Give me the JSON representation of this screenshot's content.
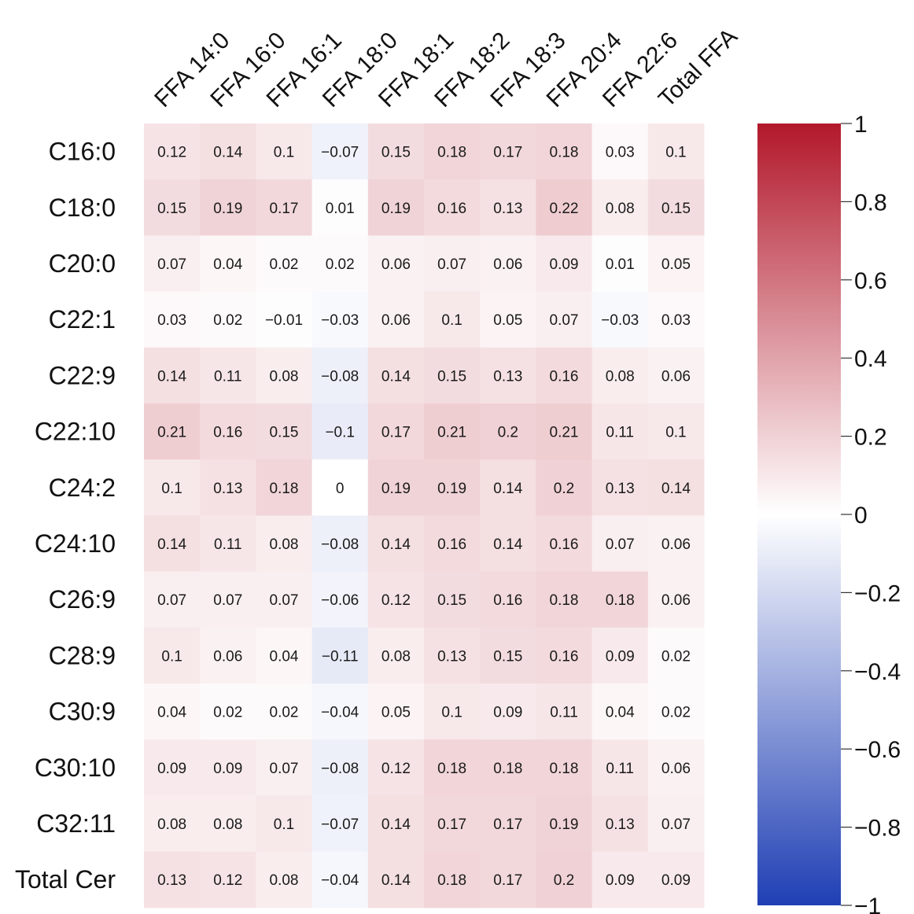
{
  "chart_data": {
    "type": "heatmap",
    "columns": [
      "FFA 14:0",
      "FFA 16:0",
      "FFA 16:1",
      "FFA 18:0",
      "FFA 18:1",
      "FFA 18:2",
      "FFA 18:3",
      "FFA 20:4",
      "FFA 22:6",
      "Total FFA"
    ],
    "rows": [
      "C16:0",
      "C18:0",
      "C20:0",
      "C22:1",
      "C22:9",
      "C22:10",
      "C24:2",
      "C24:10",
      "C26:9",
      "C28:9",
      "C30:9",
      "C30:10",
      "C32:11",
      "Total Cer"
    ],
    "values": [
      [
        0.12,
        0.14,
        0.1,
        -0.07,
        0.15,
        0.18,
        0.17,
        0.18,
        0.03,
        0.1
      ],
      [
        0.15,
        0.19,
        0.17,
        0.01,
        0.19,
        0.16,
        0.13,
        0.22,
        0.08,
        0.15
      ],
      [
        0.07,
        0.04,
        0.02,
        0.02,
        0.06,
        0.07,
        0.06,
        0.09,
        0.01,
        0.05
      ],
      [
        0.03,
        0.02,
        -0.01,
        -0.03,
        0.06,
        0.1,
        0.05,
        0.07,
        -0.03,
        0.03
      ],
      [
        0.14,
        0.11,
        0.08,
        -0.08,
        0.14,
        0.15,
        0.13,
        0.16,
        0.08,
        0.06
      ],
      [
        0.21,
        0.16,
        0.15,
        -0.1,
        0.17,
        0.21,
        0.2,
        0.21,
        0.11,
        0.1
      ],
      [
        0.1,
        0.13,
        0.18,
        0,
        0.19,
        0.19,
        0.14,
        0.2,
        0.13,
        0.14
      ],
      [
        0.14,
        0.11,
        0.08,
        -0.08,
        0.14,
        0.16,
        0.14,
        0.16,
        0.07,
        0.06
      ],
      [
        0.07,
        0.07,
        0.07,
        -0.06,
        0.12,
        0.15,
        0.16,
        0.18,
        0.18,
        0.06
      ],
      [
        0.1,
        0.06,
        0.04,
        -0.11,
        0.08,
        0.13,
        0.15,
        0.16,
        0.09,
        0.02
      ],
      [
        0.04,
        0.02,
        0.02,
        -0.04,
        0.05,
        0.1,
        0.09,
        0.11,
        0.04,
        0.02
      ],
      [
        0.09,
        0.09,
        0.07,
        -0.08,
        0.12,
        0.18,
        0.18,
        0.18,
        0.11,
        0.06
      ],
      [
        0.08,
        0.08,
        0.1,
        -0.07,
        0.14,
        0.17,
        0.17,
        0.19,
        0.13,
        0.07
      ],
      [
        0.13,
        0.12,
        0.08,
        -0.04,
        0.14,
        0.18,
        0.17,
        0.2,
        0.09,
        0.09
      ]
    ],
    "value_labels": [
      [
        "0.12",
        "0.14",
        "0.1",
        "−0.07",
        "0.15",
        "0.18",
        "0.17",
        "0.18",
        "0.03",
        "0.1"
      ],
      [
        "0.15",
        "0.19",
        "0.17",
        "0.01",
        "0.19",
        "0.16",
        "0.13",
        "0.22",
        "0.08",
        "0.15"
      ],
      [
        "0.07",
        "0.04",
        "0.02",
        "0.02",
        "0.06",
        "0.07",
        "0.06",
        "0.09",
        "0.01",
        "0.05"
      ],
      [
        "0.03",
        "0.02",
        "−0.01",
        "−0.03",
        "0.06",
        "0.1",
        "0.05",
        "0.07",
        "−0.03",
        "0.03"
      ],
      [
        "0.14",
        "0.11",
        "0.08",
        "−0.08",
        "0.14",
        "0.15",
        "0.13",
        "0.16",
        "0.08",
        "0.06"
      ],
      [
        "0.21",
        "0.16",
        "0.15",
        "−0.1",
        "0.17",
        "0.21",
        "0.2",
        "0.21",
        "0.11",
        "0.1"
      ],
      [
        "0.1",
        "0.13",
        "0.18",
        "0",
        "0.19",
        "0.19",
        "0.14",
        "0.2",
        "0.13",
        "0.14"
      ],
      [
        "0.14",
        "0.11",
        "0.08",
        "−0.08",
        "0.14",
        "0.16",
        "0.14",
        "0.16",
        "0.07",
        "0.06"
      ],
      [
        "0.07",
        "0.07",
        "0.07",
        "−0.06",
        "0.12",
        "0.15",
        "0.16",
        "0.18",
        "0.18",
        "0.06"
      ],
      [
        "0.1",
        "0.06",
        "0.04",
        "−0.11",
        "0.08",
        "0.13",
        "0.15",
        "0.16",
        "0.09",
        "0.02"
      ],
      [
        "0.04",
        "0.02",
        "0.02",
        "−0.04",
        "0.05",
        "0.1",
        "0.09",
        "0.11",
        "0.04",
        "0.02"
      ],
      [
        "0.09",
        "0.09",
        "0.07",
        "−0.08",
        "0.12",
        "0.18",
        "0.18",
        "0.18",
        "0.11",
        "0.06"
      ],
      [
        "0.08",
        "0.08",
        "0.1",
        "−0.07",
        "0.14",
        "0.17",
        "0.17",
        "0.19",
        "0.13",
        "0.07"
      ],
      [
        "0.13",
        "0.12",
        "0.08",
        "−0.04",
        "0.14",
        "0.18",
        "0.17",
        "0.2",
        "0.09",
        "0.09"
      ]
    ],
    "colorbar": {
      "range": [
        -1,
        1
      ],
      "ticks": [
        1,
        0.8,
        0.6,
        0.4,
        0.2,
        0,
        -0.2,
        -0.4,
        -0.6,
        -0.8,
        -1
      ],
      "tick_labels": [
        "1",
        "0.8",
        "0.6",
        "0.4",
        "0.2",
        "0",
        "−0.2",
        "−0.4",
        "−0.6",
        "−0.8",
        "−1"
      ],
      "colors": {
        "negative": "#1f3fb4",
        "zero": "#ffffff",
        "positive": "#b2182b"
      }
    },
    "title": "",
    "xlabel": "",
    "ylabel": "",
    "grid": false,
    "legend": "colorbar-right"
  }
}
